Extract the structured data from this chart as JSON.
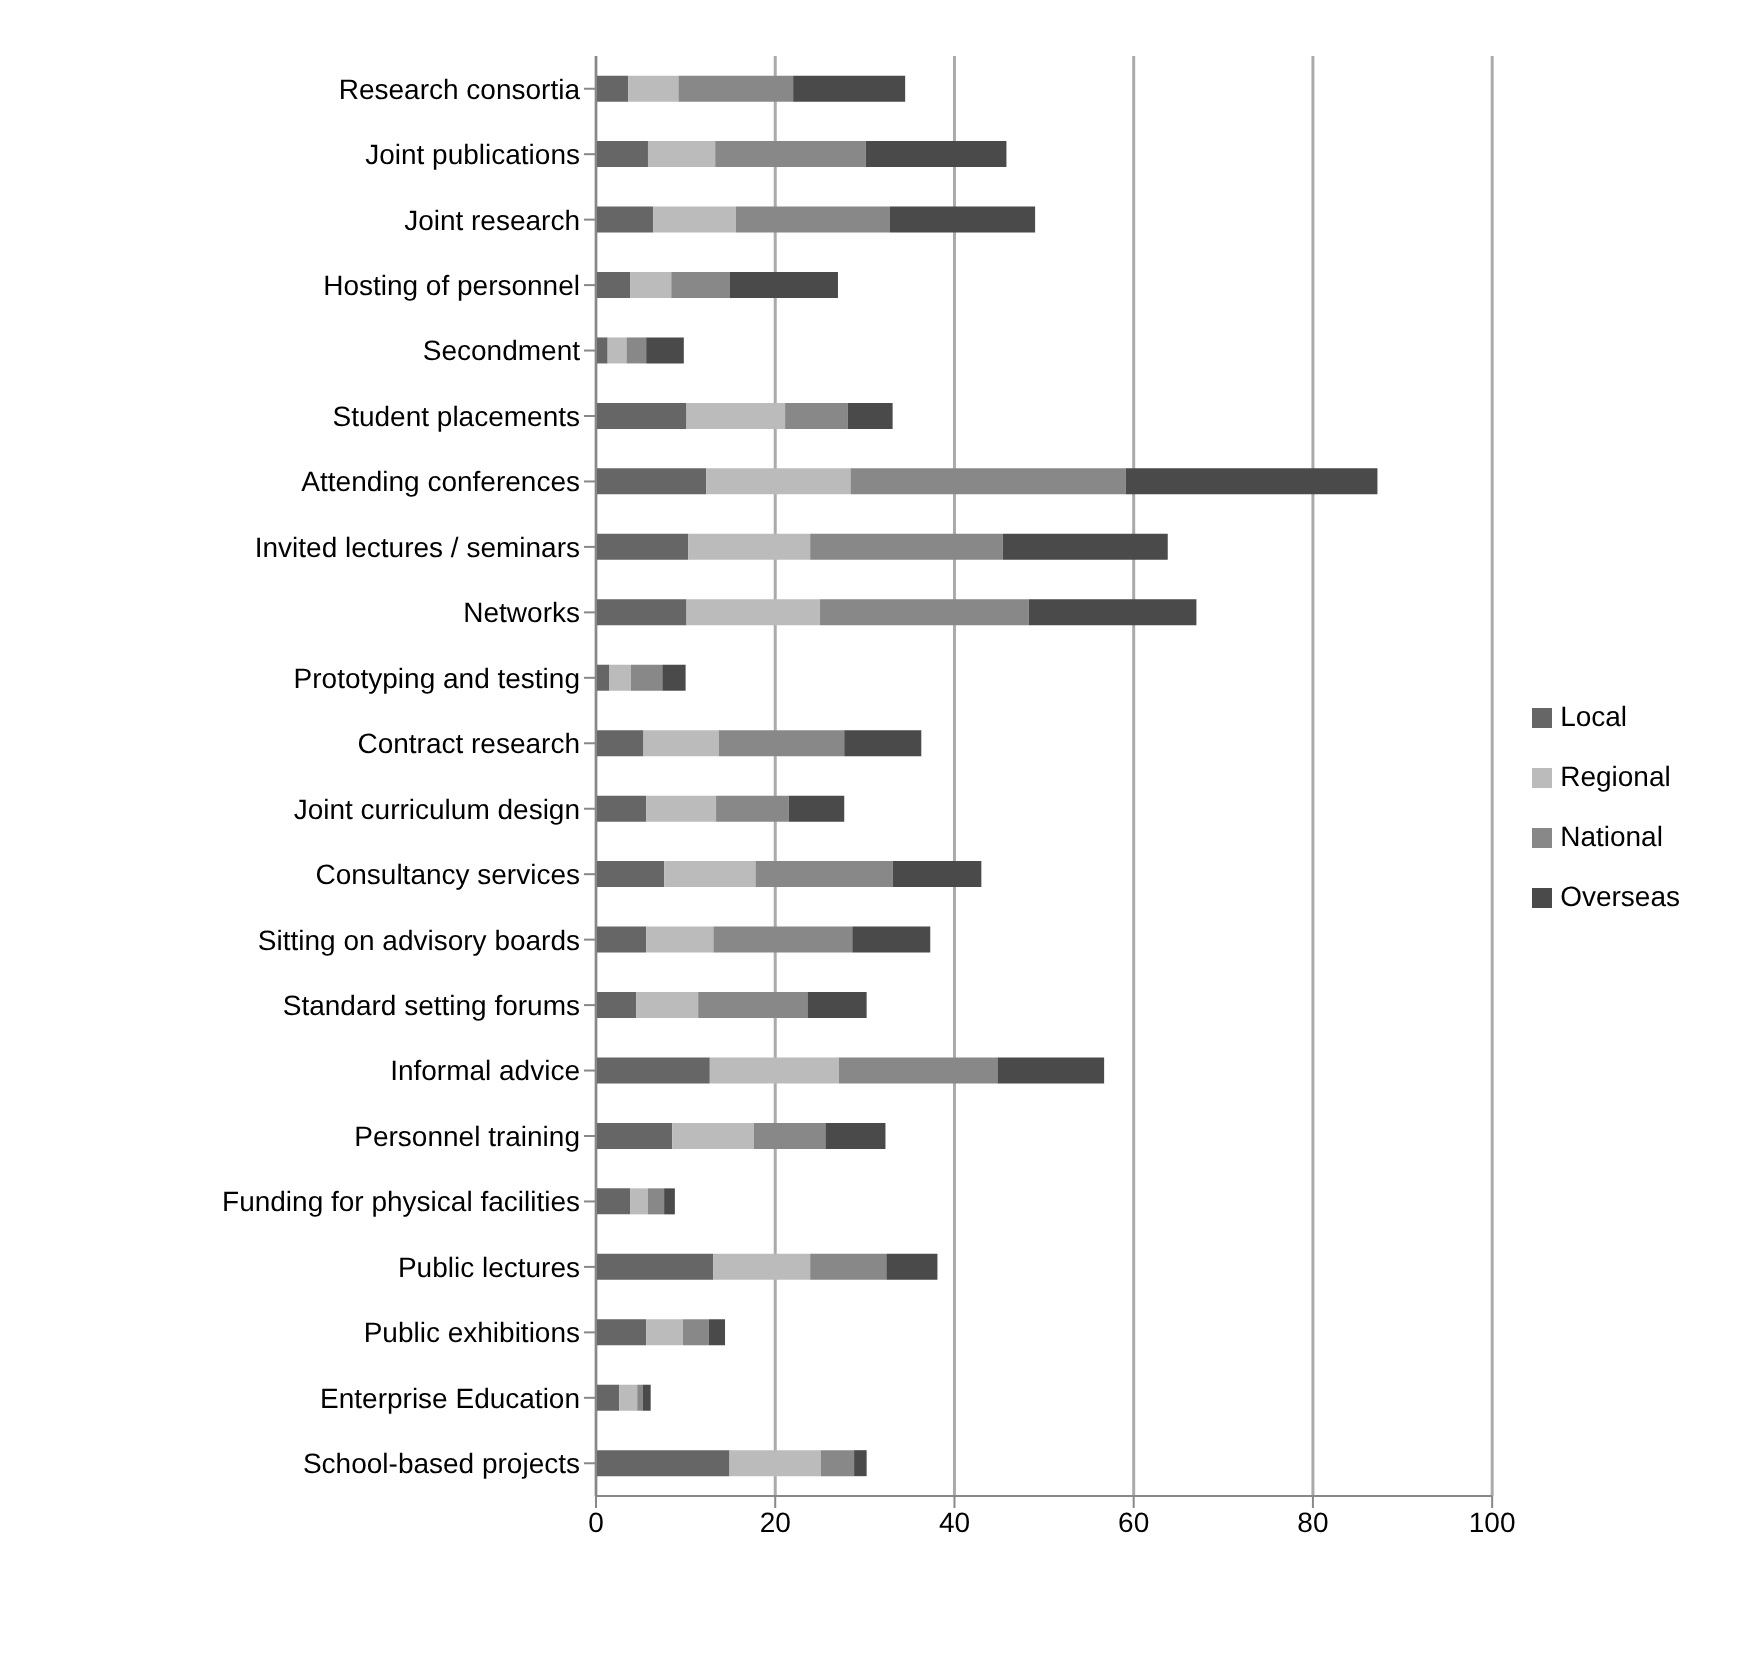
{
  "chart_data": {
    "type": "bar",
    "orientation": "horizontal",
    "stacked": true,
    "categories": [
      "Research consortia",
      "Joint publications",
      "Joint research",
      "Hosting of personnel",
      "Secondment",
      "Student placements",
      "Attending conferences",
      "Invited lectures / seminars",
      "Networks",
      "Prototyping and testing",
      "Contract research",
      "Joint curriculum design",
      "Consultancy services",
      "Sitting on advisory boards",
      "Standard setting forums",
      "Informal advice",
      "Personnel training",
      "Funding for physical facilities",
      "Public lectures",
      "Public exhibitions",
      "Enterprise Education",
      "School-based projects"
    ],
    "series": [
      {
        "name": "Local",
        "color": "#666666",
        "values": [
          3.6,
          5.8,
          6.4,
          3.8,
          1.3,
          10.1,
          12.3,
          10.3,
          10.1,
          1.5,
          5.3,
          5.6,
          7.6,
          5.6,
          4.5,
          12.7,
          8.5,
          3.8,
          13.1,
          5.6,
          2.6,
          14.9
        ]
      },
      {
        "name": "Regional",
        "color": "#bbbbbb",
        "values": [
          5.6,
          7.5,
          9.2,
          4.6,
          2.1,
          11,
          16.1,
          13.6,
          14.9,
          2.4,
          8.4,
          7.8,
          10.2,
          7.5,
          6.9,
          14.4,
          9.1,
          2,
          10.8,
          4.1,
          2,
          10.2
        ]
      },
      {
        "name": "National",
        "color": "#888888",
        "values": [
          12.8,
          16.8,
          17.2,
          6.5,
          2.2,
          7,
          30.7,
          21.5,
          23.3,
          3.5,
          14,
          8.1,
          15.3,
          15.5,
          12.2,
          17.7,
          8,
          1.8,
          8.5,
          2.9,
          0.6,
          3.7
        ]
      },
      {
        "name": "Overseas",
        "color": "#4a4a4a",
        "values": [
          12.5,
          15.7,
          16.2,
          12.1,
          4.2,
          5,
          28.1,
          18.4,
          18.7,
          2.6,
          8.6,
          6.2,
          9.9,
          8.7,
          6.6,
          11.9,
          6.7,
          1.2,
          5.7,
          1.8,
          0.9,
          1.4
        ]
      }
    ],
    "xlim": [
      0,
      100
    ],
    "xticks": [
      0,
      20,
      40,
      60,
      80,
      100
    ],
    "grid": "x",
    "legend": "right"
  }
}
